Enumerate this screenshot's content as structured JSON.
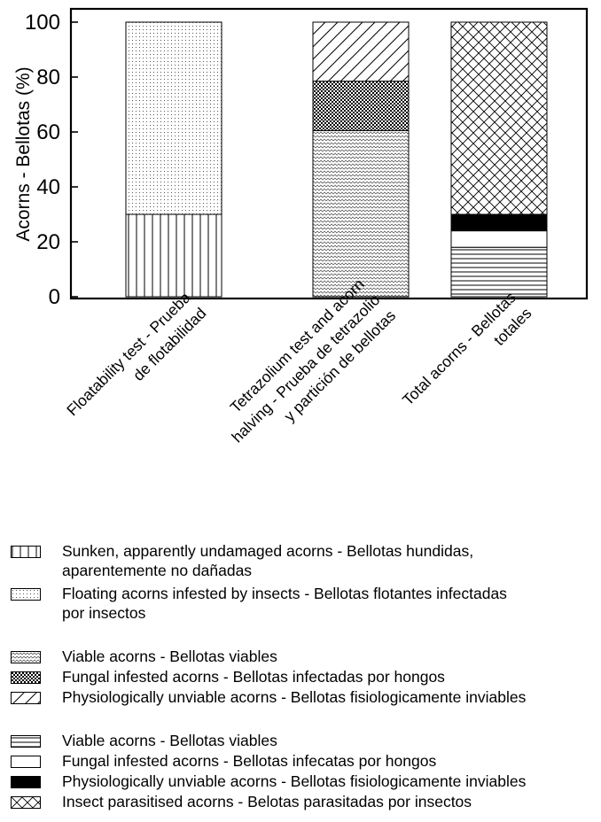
{
  "chart_data": {
    "type": "bar",
    "stacked": true,
    "ylabel": "Acorns - Bellotas (%)",
    "ylim": [
      0,
      100
    ],
    "yticks": [
      0,
      20,
      40,
      60,
      80,
      100
    ],
    "grid": false,
    "legend_placement": "bottom",
    "categories": [
      {
        "lines": [
          "Floatability test - Prueba",
          "de flotabilidad"
        ]
      },
      {
        "lines": [
          "Tetrazolium test  and acorn",
          "halving - Prueba de tetrazolio",
          "y partición de bellotas"
        ]
      },
      {
        "lines": [
          "Total acorns - Bellotas",
          "totales"
        ]
      }
    ],
    "bars": [
      {
        "category_index": 0,
        "segments": [
          {
            "label": "Sunken, apparently undamaged acorns - Bellotas hundidas, aparentemente no dañadas",
            "value": 30,
            "pattern": "vertical-lines"
          },
          {
            "label": "Floating acorns infested by insects - Bellotas flotantes infectadas por insectos",
            "value": 70,
            "pattern": "dots"
          }
        ]
      },
      {
        "category_index": 1,
        "segments": [
          {
            "label": "Viable acorns - Bellotas viables",
            "value": 60.5,
            "pattern": "wavy"
          },
          {
            "label": "Fungal infested acorns - Bellotas infectadas por hongos",
            "value": 18,
            "pattern": "checker"
          },
          {
            "label": "Physiologically unviable acorns - Bellotas fisiologicamente inviables",
            "value": 21.5,
            "pattern": "diagonal"
          }
        ]
      },
      {
        "category_index": 2,
        "segments": [
          {
            "label": "Viable acorns - Bellotas viables",
            "value": 18,
            "pattern": "horizontal-lines"
          },
          {
            "label": "Fungal infested acorns - Bellotas infecatas por hongos",
            "value": 6,
            "pattern": "blank"
          },
          {
            "label": "Physiologically unviable acorns - Bellotas fisiologicamente inviables",
            "value": 6,
            "pattern": "solid-black"
          },
          {
            "label": "Insect parasitised acorns - Belotas parasitadas por insectos",
            "value": 70,
            "pattern": "crosshatch"
          }
        ]
      }
    ]
  },
  "legend": {
    "groups": [
      {
        "items": [
          {
            "pattern": "vertical-lines",
            "text": "Sunken, apparently undamaged acorns - Bellotas hundidas,\naparentemente no dañadas"
          },
          {
            "pattern": "dots",
            "text": "Floating acorns infested by insects - Bellotas flotantes infectadas\npor insectos"
          }
        ]
      },
      {
        "items": [
          {
            "pattern": "wavy",
            "text": "Viable acorns - Bellotas viables"
          },
          {
            "pattern": "checker",
            "text": "Fungal infested acorns - Bellotas infectadas por hongos"
          },
          {
            "pattern": "diagonal",
            "text": "Physiologically unviable acorns - Bellotas fisiologicamente inviables"
          }
        ]
      },
      {
        "items": [
          {
            "pattern": "horizontal-lines",
            "text": "Viable acorns - Bellotas viables"
          },
          {
            "pattern": "blank",
            "text": "Fungal infested acorns - Bellotas infecatas por hongos"
          },
          {
            "pattern": "solid-black",
            "text": "Physiologically unviable acorns - Bellotas fisiologicamente inviables"
          },
          {
            "pattern": "crosshatch",
            "text": "Insect parasitised acorns - Belotas parasitadas por insectos"
          }
        ]
      }
    ]
  }
}
